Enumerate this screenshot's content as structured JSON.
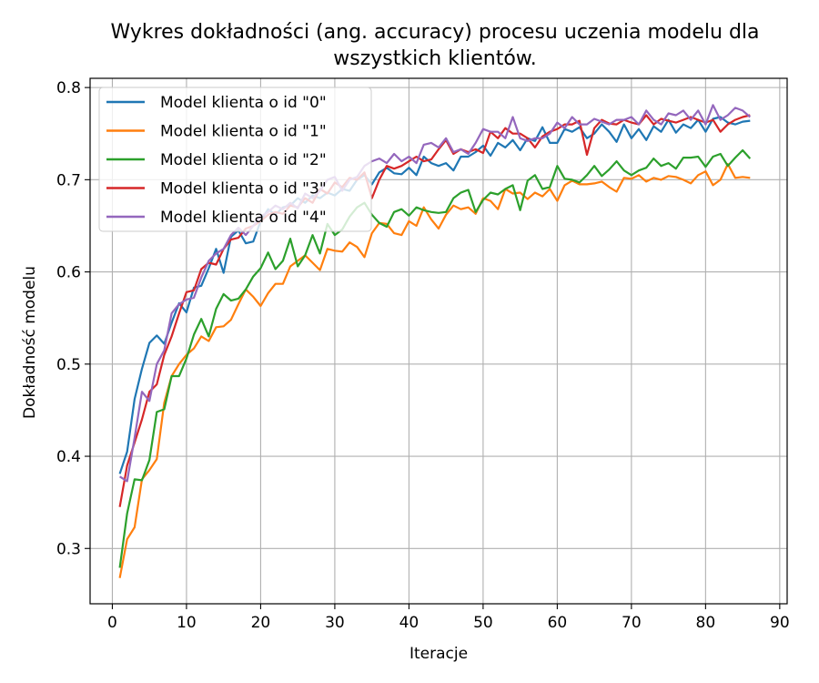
{
  "chart_data": {
    "type": "line",
    "title_line1": "Wykres dokładności (ang. accuracy) procesu uczenia modelu dla",
    "title_line2": "wszystkich klientów.",
    "xlabel": "Iteracje",
    "ylabel": "Dokładność modelu",
    "xlim": [
      -3,
      91
    ],
    "ylim": [
      0.24,
      0.81
    ],
    "xticks": [
      0,
      10,
      20,
      30,
      40,
      50,
      60,
      70,
      80,
      90
    ],
    "yticks": [
      0.3,
      0.4,
      0.5,
      0.6,
      0.7,
      0.8
    ],
    "xtick_labels": [
      "0",
      "10",
      "20",
      "30",
      "40",
      "50",
      "60",
      "70",
      "80",
      "90"
    ],
    "ytick_labels": [
      "0.3",
      "0.4",
      "0.5",
      "0.6",
      "0.7",
      "0.8"
    ],
    "grid": true,
    "legend_position": "top-left",
    "x_start": 1,
    "series": [
      {
        "name": "Model klienta o id \"0\"",
        "color": "#1f77b4",
        "values": [
          0.381,
          0.405,
          0.462,
          0.495,
          0.523,
          0.531,
          0.522,
          0.545,
          0.566,
          0.556,
          0.583,
          0.585,
          0.604,
          0.625,
          0.599,
          0.638,
          0.645,
          0.631,
          0.633,
          0.655,
          0.668,
          0.662,
          0.67,
          0.672,
          0.68,
          0.675,
          0.683,
          0.68,
          0.686,
          0.683,
          0.69,
          0.688,
          0.7,
          0.705,
          0.695,
          0.708,
          0.713,
          0.707,
          0.706,
          0.713,
          0.705,
          0.725,
          0.718,
          0.715,
          0.718,
          0.71,
          0.725,
          0.725,
          0.73,
          0.737,
          0.726,
          0.74,
          0.735,
          0.743,
          0.732,
          0.745,
          0.742,
          0.757,
          0.74,
          0.74,
          0.755,
          0.752,
          0.757,
          0.745,
          0.75,
          0.76,
          0.752,
          0.741,
          0.76,
          0.745,
          0.755,
          0.743,
          0.758,
          0.752,
          0.765,
          0.751,
          0.76,
          0.756,
          0.765,
          0.752,
          0.766,
          0.768,
          0.762,
          0.76,
          0.763,
          0.764
        ]
      },
      {
        "name": "Model klienta o id \"1\"",
        "color": "#ff7f0e",
        "values": [
          0.268,
          0.31,
          0.323,
          0.375,
          0.385,
          0.397,
          0.458,
          0.487,
          0.5,
          0.51,
          0.517,
          0.53,
          0.525,
          0.54,
          0.541,
          0.548,
          0.565,
          0.581,
          0.573,
          0.563,
          0.577,
          0.587,
          0.587,
          0.606,
          0.612,
          0.618,
          0.61,
          0.602,
          0.625,
          0.623,
          0.622,
          0.632,
          0.627,
          0.616,
          0.642,
          0.653,
          0.652,
          0.642,
          0.64,
          0.655,
          0.65,
          0.67,
          0.657,
          0.647,
          0.662,
          0.672,
          0.668,
          0.67,
          0.663,
          0.68,
          0.677,
          0.668,
          0.69,
          0.685,
          0.686,
          0.679,
          0.686,
          0.682,
          0.69,
          0.677,
          0.694,
          0.699,
          0.695,
          0.695,
          0.696,
          0.698,
          0.692,
          0.687,
          0.702,
          0.701,
          0.705,
          0.698,
          0.702,
          0.7,
          0.704,
          0.703,
          0.7,
          0.696,
          0.705,
          0.709,
          0.694,
          0.7,
          0.717,
          0.702,
          0.703,
          0.702
        ]
      },
      {
        "name": "Model klienta o id \"2\"",
        "color": "#2ca02c",
        "values": [
          0.279,
          0.338,
          0.375,
          0.374,
          0.396,
          0.448,
          0.451,
          0.487,
          0.487,
          0.506,
          0.532,
          0.549,
          0.53,
          0.56,
          0.576,
          0.569,
          0.571,
          0.581,
          0.595,
          0.604,
          0.621,
          0.603,
          0.612,
          0.636,
          0.606,
          0.618,
          0.64,
          0.62,
          0.652,
          0.64,
          0.646,
          0.66,
          0.67,
          0.675,
          0.662,
          0.653,
          0.649,
          0.665,
          0.668,
          0.661,
          0.67,
          0.667,
          0.665,
          0.664,
          0.665,
          0.68,
          0.686,
          0.689,
          0.665,
          0.678,
          0.686,
          0.684,
          0.69,
          0.694,
          0.667,
          0.699,
          0.705,
          0.69,
          0.692,
          0.715,
          0.701,
          0.7,
          0.697,
          0.705,
          0.715,
          0.704,
          0.711,
          0.72,
          0.71,
          0.705,
          0.71,
          0.713,
          0.723,
          0.715,
          0.718,
          0.712,
          0.724,
          0.724,
          0.725,
          0.714,
          0.725,
          0.728,
          0.715,
          0.724,
          0.732,
          0.723
        ]
      },
      {
        "name": "Model klienta o id \"3\"",
        "color": "#d62728",
        "values": [
          0.345,
          0.39,
          0.415,
          0.44,
          0.47,
          0.478,
          0.51,
          0.53,
          0.555,
          0.578,
          0.58,
          0.603,
          0.61,
          0.608,
          0.625,
          0.635,
          0.637,
          0.647,
          0.65,
          0.655,
          0.662,
          0.665,
          0.663,
          0.672,
          0.67,
          0.68,
          0.675,
          0.69,
          0.685,
          0.697,
          0.692,
          0.702,
          0.7,
          0.708,
          0.68,
          0.7,
          0.715,
          0.712,
          0.715,
          0.72,
          0.725,
          0.72,
          0.722,
          0.733,
          0.743,
          0.728,
          0.733,
          0.73,
          0.733,
          0.729,
          0.752,
          0.745,
          0.756,
          0.75,
          0.75,
          0.745,
          0.735,
          0.747,
          0.752,
          0.755,
          0.76,
          0.76,
          0.764,
          0.727,
          0.756,
          0.765,
          0.761,
          0.76,
          0.765,
          0.762,
          0.76,
          0.77,
          0.76,
          0.766,
          0.764,
          0.762,
          0.765,
          0.768,
          0.765,
          0.762,
          0.765,
          0.752,
          0.76,
          0.765,
          0.768,
          0.77
        ]
      },
      {
        "name": "Model klienta o id \"4\"",
        "color": "#9467bd",
        "values": [
          0.378,
          0.373,
          0.42,
          0.47,
          0.46,
          0.5,
          0.515,
          0.555,
          0.565,
          0.57,
          0.572,
          0.594,
          0.612,
          0.62,
          0.625,
          0.64,
          0.648,
          0.64,
          0.65,
          0.66,
          0.665,
          0.672,
          0.668,
          0.675,
          0.669,
          0.685,
          0.68,
          0.688,
          0.7,
          0.703,
          0.688,
          0.7,
          0.703,
          0.715,
          0.72,
          0.723,
          0.718,
          0.728,
          0.72,
          0.725,
          0.718,
          0.738,
          0.74,
          0.735,
          0.745,
          0.73,
          0.733,
          0.728,
          0.74,
          0.755,
          0.752,
          0.752,
          0.745,
          0.768,
          0.745,
          0.742,
          0.745,
          0.745,
          0.75,
          0.762,
          0.756,
          0.768,
          0.76,
          0.76,
          0.766,
          0.763,
          0.76,
          0.765,
          0.765,
          0.768,
          0.76,
          0.775,
          0.765,
          0.76,
          0.772,
          0.77,
          0.775,
          0.765,
          0.775,
          0.76,
          0.781,
          0.765,
          0.77,
          0.778,
          0.775,
          0.768
        ]
      }
    ]
  }
}
